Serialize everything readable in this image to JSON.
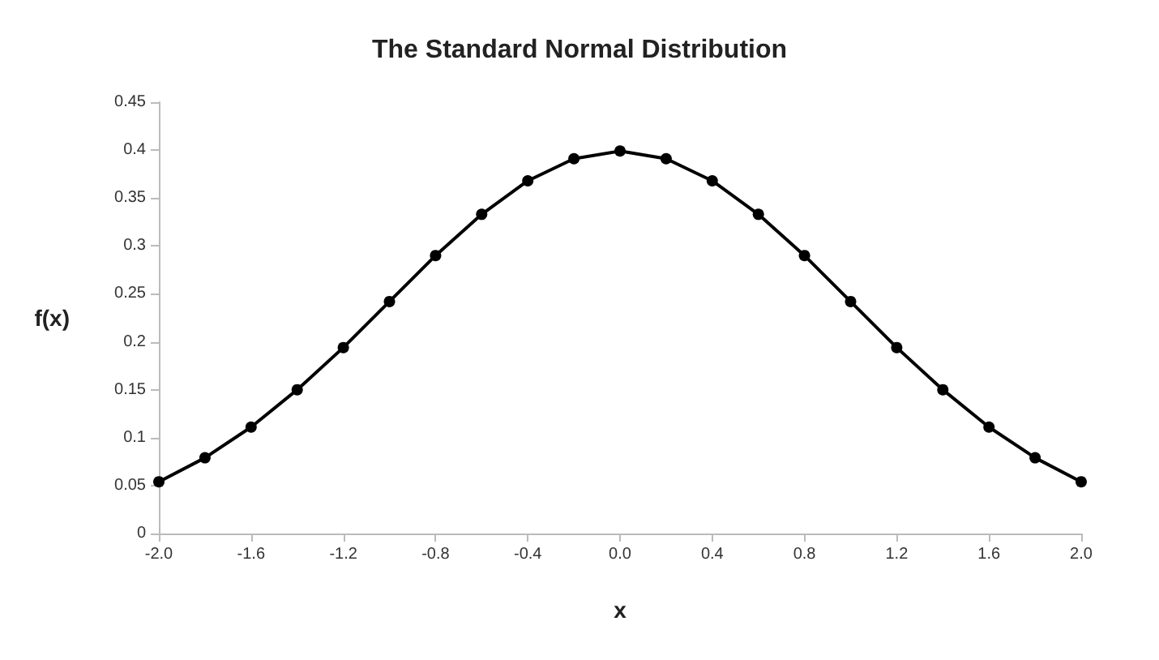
{
  "chart_data": {
    "type": "line",
    "title": "The Standard Normal Distribution",
    "xlabel": "x",
    "ylabel": "f(x)",
    "x": [
      -2,
      -1.8,
      -1.6,
      -1.4,
      -1.2,
      -1,
      -0.8,
      -0.6,
      -0.4,
      -0.2,
      0,
      0.2,
      0.4,
      0.6,
      0.8,
      1,
      1.2,
      1.4,
      1.6,
      1.8,
      2
    ],
    "series": [
      {
        "color": "#000000",
        "values": [
          0.054,
          0.079,
          0.111,
          0.15,
          0.194,
          0.242,
          0.29,
          0.333,
          0.368,
          0.391,
          0.399,
          0.391,
          0.368,
          0.333,
          0.29,
          0.242,
          0.194,
          0.15,
          0.111,
          0.079,
          0.054
        ]
      }
    ],
    "xlim": [
      -2,
      2
    ],
    "xticks": [
      {
        "value": -2,
        "label": "-2.0"
      },
      {
        "value": -1.6,
        "label": "-1.6"
      },
      {
        "value": -1.2,
        "label": "-1.2"
      },
      {
        "value": -0.8,
        "label": "-0.8"
      },
      {
        "value": -0.4,
        "label": "-0.4"
      },
      {
        "value": 0,
        "label": "0.0"
      },
      {
        "value": 0.4,
        "label": "0.4"
      },
      {
        "value": 0.8,
        "label": "0.8"
      },
      {
        "value": 1.2,
        "label": "1.2"
      },
      {
        "value": 1.6,
        "label": "1.6"
      },
      {
        "value": 2,
        "label": "2.0"
      }
    ],
    "ylim": [
      0,
      0.45
    ],
    "yticks": [
      0,
      0.05,
      0.1,
      0.15,
      0.2,
      0.25,
      0.3,
      0.35,
      0.4,
      0.45
    ],
    "grid": false,
    "marker": "circle",
    "line_style": "solid"
  }
}
